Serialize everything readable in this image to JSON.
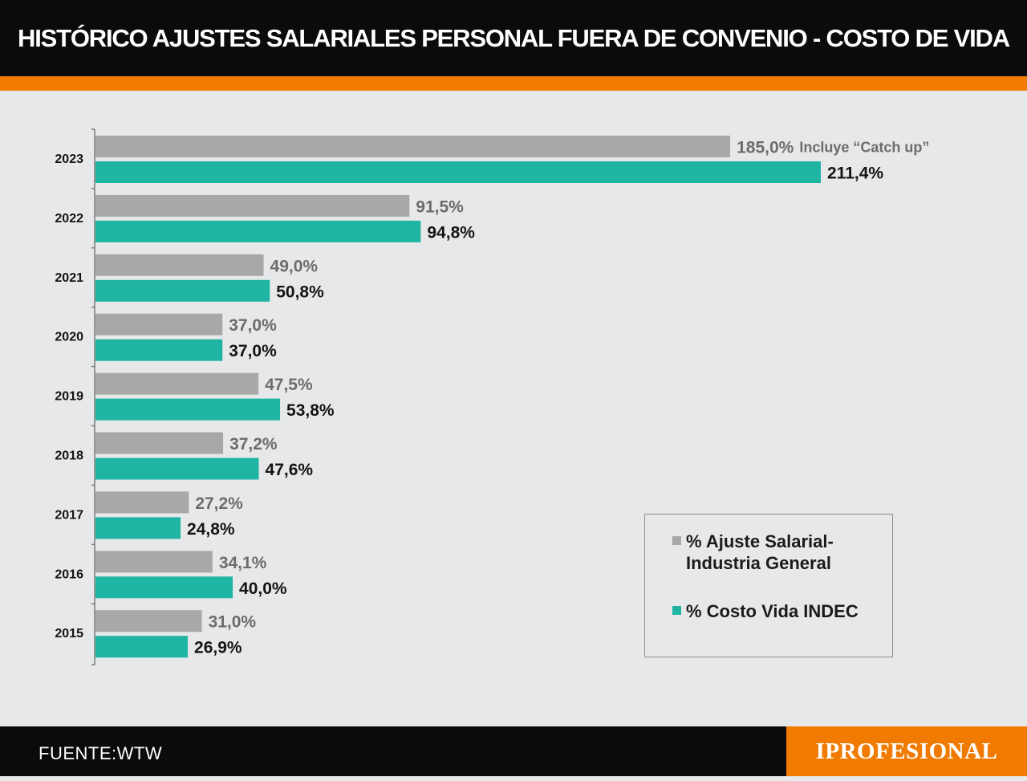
{
  "title": "HISTÓRICO AJUSTES SALARIALES PERSONAL FUERA DE CONVENIO - COSTO DE VIDA",
  "colors": {
    "header_bg": "#0b0b0b",
    "accent_orange": "#f07b00",
    "background": "#e7e8e9",
    "series_gray": "#a8a8a8",
    "series_teal": "#1fb5a2",
    "gray_label": "#6c6c6c",
    "teal_label": "#141414"
  },
  "chart_data": {
    "type": "bar",
    "orientation": "horizontal",
    "title": "HISTÓRICO AJUSTES SALARIALES PERSONAL FUERA DE CONVENIO - COSTO DE VIDA",
    "categories": [
      "2023",
      "2022",
      "2021",
      "2020",
      "2019",
      "2018",
      "2017",
      "2016",
      "2015"
    ],
    "series": [
      {
        "name": "% Ajuste Salarial-Industria General",
        "values": [
          185.0,
          91.5,
          49.0,
          37.0,
          47.5,
          37.2,
          27.2,
          34.1,
          31.0
        ],
        "labels": [
          "185,0%",
          "91,5%",
          "49,0%",
          "37,0%",
          "47,5%",
          "37,2%",
          "27,2%",
          "34,1%",
          "31,0%"
        ]
      },
      {
        "name": "% Costo Vida INDEC",
        "values": [
          211.4,
          94.8,
          50.8,
          37.0,
          53.8,
          47.6,
          24.8,
          40.0,
          26.9
        ],
        "labels": [
          "211,4%",
          "94,8%",
          "50,8%",
          "37,0%",
          "53,8%",
          "47,6%",
          "24,8%",
          "40,0%",
          "26,9%"
        ]
      }
    ],
    "annotations": [
      {
        "category": "2023",
        "series": 0,
        "text": "Incluye “Catch up”"
      }
    ],
    "xlim": [
      0,
      211.4
    ],
    "grid": false,
    "legend_position": "bottom-right"
  },
  "legend": {
    "items": [
      {
        "label_line1": "% Ajuste Salarial-",
        "label_line2": "Industria General"
      },
      {
        "label_line1": "% Costo Vida INDEC",
        "label_line2": ""
      }
    ]
  },
  "footer": {
    "source": "FUENTE:WTW",
    "brand": "IPROFESIONAL"
  }
}
